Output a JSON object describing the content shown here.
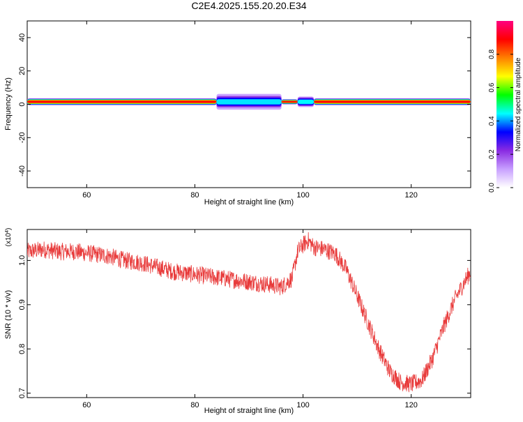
{
  "title": "C2E4.2025.155.20.20.E34",
  "chart_data": [
    {
      "type": "heatmap",
      "xlabel": "Height of straight line (km)",
      "ylabel": "Frequency (Hz)",
      "xlim": [
        49,
        131
      ],
      "ylim": [
        -50,
        50
      ],
      "xticks": [
        60,
        80,
        100,
        120
      ],
      "yticks": [
        40,
        20,
        0,
        -20,
        -40
      ],
      "colorbar": {
        "label": "Normalized spectral amplitude",
        "range": [
          0,
          1
        ],
        "ticks": [
          "0.0",
          "0.2",
          "0.4",
          "0.6",
          "0.8"
        ],
        "colors": [
          "#ffffff",
          "#c8a0ff",
          "#8a2be2",
          "#0000ff",
          "#00ffff",
          "#00ff00",
          "#ffff00",
          "#ff8000",
          "#ff0000",
          "#ff0080"
        ]
      },
      "band": {
        "center_hz": 1.5,
        "segments": [
          {
            "x": [
              49,
              84
            ],
            "half_width_hz": 2.0,
            "peak": 1.0
          },
          {
            "x": [
              84,
              96
            ],
            "half_width_hz": 4.5,
            "peak": 0.45
          },
          {
            "x": [
              96,
              99
            ],
            "half_width_hz": 1.5,
            "peak": 1.0
          },
          {
            "x": [
              99,
              102
            ],
            "half_width_hz": 3.0,
            "peak": 0.55
          },
          {
            "x": [
              102,
              131
            ],
            "half_width_hz": 2.0,
            "peak": 1.0
          }
        ]
      }
    },
    {
      "type": "line",
      "xlabel": "Height of straight line (km)",
      "ylabel": "SNR (10 * v/v)",
      "y_multiplier": "(x10^4)",
      "xlim": [
        49,
        131
      ],
      "ylim": [
        0.69,
        1.07
      ],
      "xticks": [
        60,
        80,
        100,
        120
      ],
      "yticks": [
        "1.0",
        "0.9",
        "0.8",
        "0.7"
      ],
      "color": "#e83a3a",
      "series": [
        {
          "x": [
            49,
            52,
            55,
            58,
            61,
            64,
            67,
            70,
            73,
            76,
            79,
            82,
            85,
            88,
            91,
            94,
            96,
            97,
            98,
            99,
            100,
            101,
            102,
            104,
            106,
            108,
            110,
            112,
            114,
            116,
            118,
            120,
            122,
            124,
            126,
            128,
            130,
            131
          ],
          "values": [
            1.02,
            1.025,
            1.02,
            1.02,
            1.015,
            1.01,
            1.0,
            0.995,
            0.985,
            0.975,
            0.97,
            0.965,
            0.96,
            0.955,
            0.95,
            0.945,
            0.94,
            0.95,
            0.96,
            1.02,
            1.035,
            1.045,
            1.03,
            1.025,
            1.015,
            0.98,
            0.92,
            0.86,
            0.8,
            0.75,
            0.725,
            0.72,
            0.73,
            0.78,
            0.85,
            0.91,
            0.955,
            0.975
          ]
        }
      ]
    }
  ]
}
